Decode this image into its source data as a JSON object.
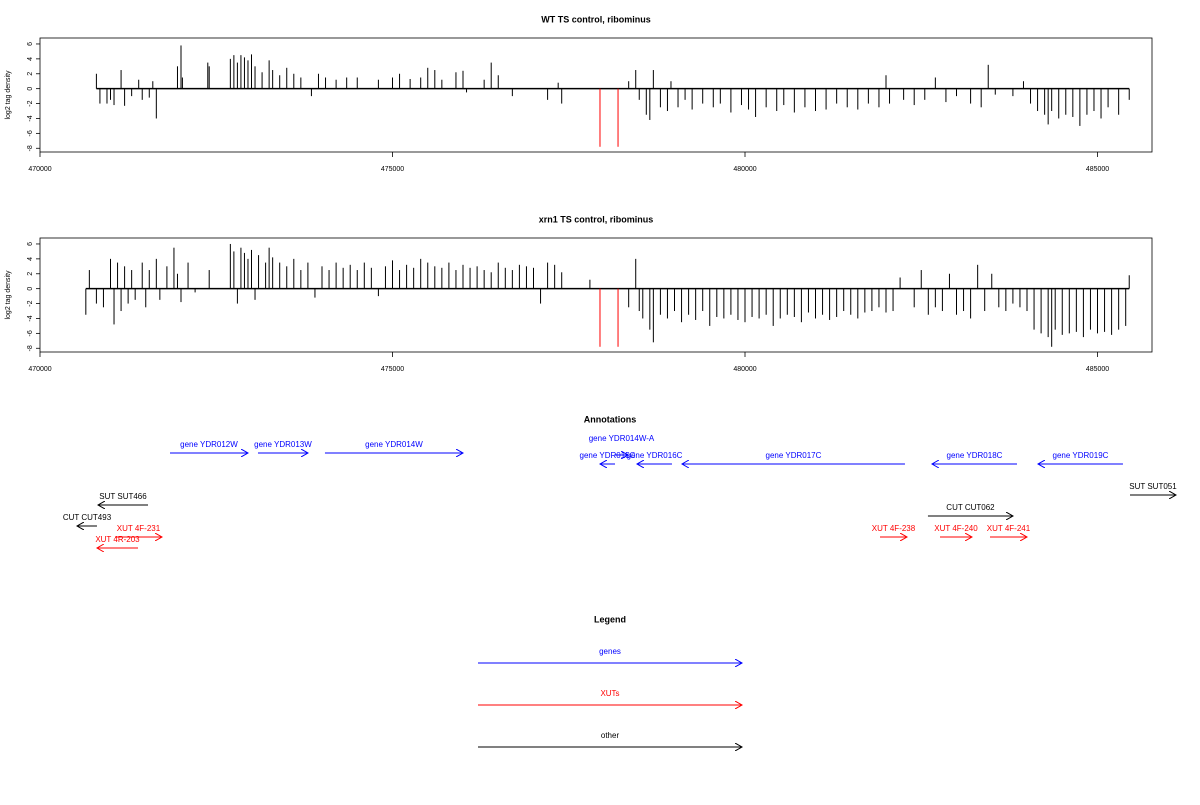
{
  "chart_data": [
    {
      "type": "bar",
      "title": "WT TS control, ribominus",
      "y_label": "log2 tag density",
      "xlim": [
        470000,
        485773
      ],
      "xticks": [
        470000,
        475000,
        480000,
        485000
      ],
      "ylim": [
        -8.5,
        6.8
      ],
      "yticks": [
        -8,
        -6,
        -4,
        -2,
        0,
        2,
        4,
        6
      ],
      "series": [
        {
          "color": "#000000",
          "x": [
            470800,
            470850,
            470950,
            471000,
            471050,
            471150,
            471200,
            471300,
            471400,
            471450,
            471550,
            471600,
            471650,
            471950,
            472000,
            472020,
            472380,
            472400,
            472700,
            472750,
            472800,
            472850,
            472900,
            472950,
            473000,
            473050,
            473150,
            473250,
            473300,
            473400,
            473500,
            473600,
            473700,
            473850,
            473950,
            474050,
            474200,
            474350,
            474500,
            474800,
            475000,
            475100,
            475250,
            475400,
            475500,
            475600,
            475700,
            475900,
            476000,
            476050,
            476300,
            476400,
            476500,
            476700,
            477200,
            477350,
            477400,
            478350,
            478450,
            478500,
            478600,
            478650,
            478700,
            478800,
            478900,
            478950,
            479050,
            479150,
            479250,
            479400,
            479550,
            479650,
            479800,
            479950,
            480050,
            480150,
            480300,
            480450,
            480550,
            480700,
            480850,
            481000,
            481150,
            481300,
            481450,
            481600,
            481750,
            481900,
            482000,
            482050,
            482250,
            482400,
            482550,
            482700,
            482850,
            483000,
            483200,
            483350,
            483450,
            483550,
            483800,
            483950,
            484050,
            484150,
            484250,
            484300,
            484350,
            484450,
            484550,
            484650,
            484750,
            484850,
            484950,
            485050,
            485150,
            485300,
            485450
          ],
          "values": [
            2,
            -2,
            -2,
            -1.5,
            -2.2,
            2.5,
            -2.3,
            -1,
            1.2,
            -1.5,
            -1.2,
            1,
            -4,
            3,
            5.8,
            1.5,
            3.5,
            3,
            4,
            4.5,
            3.5,
            4.5,
            4.2,
            3.8,
            4.6,
            3,
            2.2,
            3.8,
            2.5,
            1.8,
            2.8,
            2,
            1.5,
            -1,
            2,
            1.5,
            1.2,
            1.5,
            1.5,
            1.2,
            1.5,
            2,
            1.3,
            1.5,
            2.8,
            2.5,
            1.2,
            2.2,
            2.4,
            -0.5,
            1.2,
            3.5,
            1.8,
            -1,
            -1.5,
            0.8,
            -2,
            1,
            2.5,
            -1.5,
            -3.5,
            -4.2,
            2.5,
            -2.5,
            -3,
            1,
            -2.5,
            -1.5,
            -2.8,
            -2,
            -2.5,
            -2,
            -3.2,
            -2.2,
            -2.8,
            -3.8,
            -2.5,
            -3,
            -2.2,
            -3.2,
            -2.5,
            -3,
            -2.8,
            -2,
            -2.5,
            -2.8,
            -2,
            -2.5,
            1.8,
            -2,
            -1.5,
            -2.2,
            -1.5,
            1.5,
            -1.8,
            -1,
            -2,
            -2.5,
            3.2,
            -0.8,
            -1,
            1,
            -2,
            -3,
            -3.5,
            -4.8,
            -3,
            -4,
            -3.5,
            -3.8,
            -5,
            -3.5,
            -3,
            -4,
            -2.5,
            -3.5,
            -1.5
          ]
        },
        {
          "color": "#ff0000",
          "x": [
            477943,
            478199
          ],
          "values": [
            -7.8,
            -7.8
          ]
        }
      ]
    },
    {
      "type": "bar",
      "title": "xrn1 TS control, ribominus",
      "y_label": "log2 tag density",
      "xlim": [
        470000,
        485773
      ],
      "xticks": [
        470000,
        475000,
        480000,
        485000
      ],
      "ylim": [
        -8.5,
        6.8
      ],
      "yticks": [
        -8,
        -6,
        -4,
        -2,
        0,
        2,
        4,
        6
      ],
      "series": [
        {
          "color": "#000000",
          "x": [
            470650,
            470700,
            470800,
            470900,
            471000,
            471050,
            471100,
            471150,
            471200,
            471250,
            471300,
            471350,
            471450,
            471500,
            471550,
            471650,
            471700,
            471800,
            471900,
            471950,
            472000,
            472100,
            472200,
            472400,
            472700,
            472750,
            472800,
            472850,
            472900,
            472950,
            473000,
            473050,
            473100,
            473200,
            473250,
            473300,
            473400,
            473500,
            473600,
            473700,
            473800,
            473900,
            474000,
            474100,
            474200,
            474300,
            474400,
            474500,
            474600,
            474700,
            474800,
            474900,
            475000,
            475100,
            475200,
            475300,
            475400,
            475500,
            475600,
            475700,
            475800,
            475900,
            476000,
            476100,
            476200,
            476300,
            476400,
            476500,
            476600,
            476700,
            476800,
            476900,
            477000,
            477100,
            477200,
            477300,
            477400,
            477800,
            478350,
            478450,
            478500,
            478550,
            478650,
            478700,
            478800,
            478900,
            479000,
            479100,
            479200,
            479300,
            479400,
            479500,
            479600,
            479700,
            479800,
            479900,
            480000,
            480100,
            480200,
            480300,
            480400,
            480500,
            480600,
            480700,
            480800,
            480900,
            481000,
            481100,
            481200,
            481300,
            481400,
            481500,
            481600,
            481700,
            481800,
            481900,
            482000,
            482100,
            482200,
            482400,
            482500,
            482600,
            482700,
            482800,
            482900,
            483000,
            483100,
            483200,
            483300,
            483400,
            483500,
            483600,
            483700,
            483800,
            483900,
            484000,
            484100,
            484200,
            484300,
            484350,
            484400,
            484500,
            484600,
            484700,
            484800,
            484900,
            485000,
            485100,
            485200,
            485300,
            485400,
            485450
          ],
          "values": [
            -3.5,
            2.5,
            -2,
            -2.5,
            4,
            -4.8,
            3.5,
            -3,
            3,
            -2,
            2.5,
            -1.5,
            3.5,
            -2.5,
            2.5,
            4,
            -1.5,
            3,
            5.5,
            2,
            -1.8,
            3.5,
            -0.5,
            2.5,
            6,
            5,
            -2,
            5.5,
            4.8,
            4,
            5.2,
            -1.5,
            4.5,
            3.5,
            5.5,
            4.2,
            3.5,
            3,
            4,
            2.5,
            3.5,
            -1.2,
            3,
            2.5,
            3.5,
            2.8,
            3.2,
            2.5,
            3.5,
            2.8,
            -1,
            3,
            3.8,
            2.5,
            3.2,
            2.8,
            4,
            3.5,
            3,
            2.8,
            3.5,
            2.5,
            3.2,
            2.8,
            3,
            2.5,
            2.2,
            3.5,
            2.8,
            2.5,
            3.2,
            3,
            2.8,
            -2,
            3.5,
            3.2,
            2.2,
            1.2,
            -2.5,
            4,
            -3,
            -4,
            -5.5,
            -7.2,
            -3.5,
            -4,
            -3,
            -4.5,
            -3.5,
            -4.2,
            -3,
            -5,
            -3.8,
            -4,
            -3.5,
            -4.2,
            -4.5,
            -3.8,
            -4,
            -3.5,
            -5,
            -4,
            -3.5,
            -3.8,
            -4.5,
            -3.2,
            -4,
            -3.5,
            -4.2,
            -3.8,
            -3,
            -3.5,
            -4,
            -3.2,
            -3,
            -2.5,
            -3.2,
            -3,
            1.5,
            -2.5,
            2.5,
            -3.5,
            -2.5,
            -3,
            2,
            -3.5,
            -3,
            -4,
            3.2,
            -3,
            2,
            -2.5,
            -3,
            -2,
            -2.5,
            -3,
            -5.5,
            -6,
            -6.5,
            -7.8,
            -5.5,
            -6.2,
            -6,
            -5.8,
            -6.5,
            -5.5,
            -6,
            -5.8,
            -6.2,
            -5.5,
            -5,
            1.8
          ]
        },
        {
          "color": "#ff0000",
          "x": [
            477943,
            478199
          ],
          "values": [
            -7.8,
            -7.8
          ]
        }
      ]
    }
  ],
  "annotations": {
    "title": "Annotations",
    "items": [
      {
        "label": "gene YDR012W",
        "start": 471844,
        "end": 472950,
        "color": "#0000ff"
      },
      {
        "label": "gene YDR013W",
        "start": 473092,
        "end": 473801,
        "color": "#0000ff"
      },
      {
        "label": "gene YDR014W",
        "start": 474042,
        "end": 476000,
        "color": "#0000ff"
      },
      {
        "label": "gene YDR014W-A",
        "start": 478156,
        "end": 478340,
        "color": "#0000ff"
      },
      {
        "label": "gene YDR015C",
        "start": 478156,
        "end": 477943,
        "color": "#0000ff"
      },
      {
        "label": "gene YDR016C",
        "start": 478964,
        "end": 478468,
        "color": "#0000ff"
      },
      {
        "label": "gene YDR017C",
        "start": 482269,
        "end": 479106,
        "color": "#0000ff"
      },
      {
        "label": "gene YDR018C",
        "start": 483858,
        "end": 482652,
        "color": "#0000ff"
      },
      {
        "label": "gene YDR019C",
        "start": 485361,
        "end": 484156,
        "color": "#0000ff"
      },
      {
        "label": "SUT SUT466",
        "start": 471532,
        "end": 470823,
        "color": "#000000"
      },
      {
        "label": "CUT CUT493",
        "start": 470808,
        "end": 470525,
        "color": "#000000"
      },
      {
        "label": "CUT CUT062",
        "start": 482595,
        "end": 483801,
        "color": "#000000"
      },
      {
        "label": "SUT SUT051",
        "start": 485461,
        "end": 486113,
        "color": "#000000"
      },
      {
        "label": "XUT 4F-231",
        "start": 471064,
        "end": 471730,
        "color": "#ff0000"
      },
      {
        "label": "XUT 4R-203",
        "start": 471390,
        "end": 470808,
        "color": "#ff0000"
      },
      {
        "label": "XUT 4F-238",
        "start": 481915,
        "end": 482298,
        "color": "#ff0000"
      },
      {
        "label": "XUT 4F-240",
        "start": 482766,
        "end": 483219,
        "color": "#ff0000"
      },
      {
        "label": "XUT 4F-241",
        "start": 483475,
        "end": 484000,
        "color": "#ff0000"
      }
    ]
  },
  "legend": {
    "title": "Legend",
    "items": [
      {
        "label": "genes",
        "color": "#0000ff"
      },
      {
        "label": "XUTs",
        "color": "#ff0000"
      },
      {
        "label": "other",
        "color": "#000000"
      }
    ]
  }
}
